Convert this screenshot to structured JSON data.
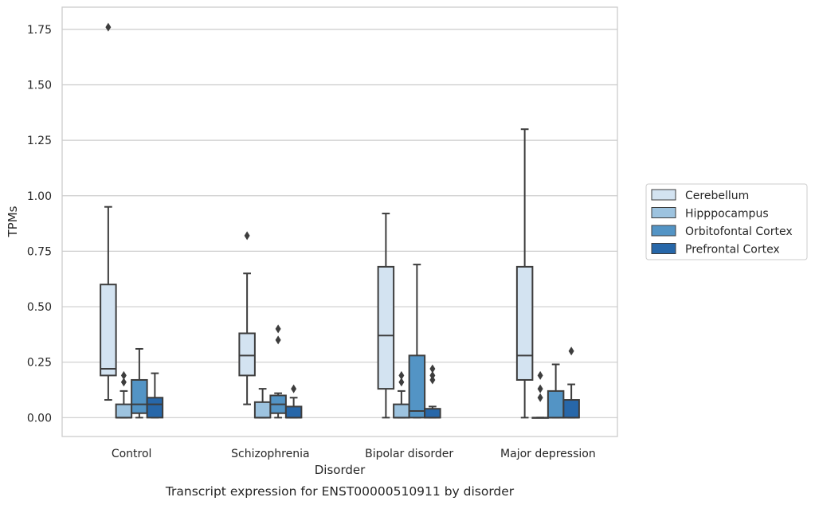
{
  "chart_data": {
    "type": "box",
    "title": "",
    "caption": "Transcript expression for ENST00000510911 by disorder",
    "xlabel": "Disorder",
    "ylabel": "TPMs",
    "ylim": [
      -0.085,
      1.85
    ],
    "yticks": [
      "0.00",
      "0.25",
      "0.50",
      "0.75",
      "1.00",
      "1.25",
      "1.50",
      "1.75"
    ],
    "grid": "horizontal",
    "legend_position": "right",
    "categories": [
      "Control",
      "Schizophrenia",
      "Bipolar disorder",
      "Major depression"
    ],
    "series": [
      {
        "name": "Cerebellum",
        "color": "#d3e3f1",
        "boxes": [
          {
            "whislo": 0.08,
            "q1": 0.19,
            "med": 0.22,
            "q3": 0.6,
            "whishi": 0.95,
            "fliers": [
              1.76
            ]
          },
          {
            "whislo": 0.06,
            "q1": 0.19,
            "med": 0.28,
            "q3": 0.38,
            "whishi": 0.65,
            "fliers": [
              0.82
            ]
          },
          {
            "whislo": 0.0,
            "q1": 0.13,
            "med": 0.37,
            "q3": 0.68,
            "whishi": 0.92,
            "fliers": []
          },
          {
            "whislo": 0.0,
            "q1": 0.17,
            "med": 0.28,
            "q3": 0.68,
            "whishi": 1.3,
            "fliers": []
          }
        ]
      },
      {
        "name": "Hipppocampus",
        "color": "#9dc3df",
        "boxes": [
          {
            "whislo": 0.0,
            "q1": 0.0,
            "med": 0.0,
            "q3": 0.06,
            "whishi": 0.12,
            "fliers": [
              0.16,
              0.19
            ]
          },
          {
            "whislo": 0.0,
            "q1": 0.0,
            "med": 0.0,
            "q3": 0.07,
            "whishi": 0.13,
            "fliers": []
          },
          {
            "whislo": 0.0,
            "q1": 0.0,
            "med": 0.0,
            "q3": 0.06,
            "whishi": 0.12,
            "fliers": [
              0.16,
              0.19
            ]
          },
          {
            "whislo": 0.0,
            "q1": 0.0,
            "med": 0.0,
            "q3": 0.0,
            "whishi": 0.0,
            "fliers": [
              0.09,
              0.13,
              0.19
            ]
          }
        ]
      },
      {
        "name": "Orbitofontal Cortex",
        "color": "#5394c5",
        "boxes": [
          {
            "whislo": 0.0,
            "q1": 0.02,
            "med": 0.06,
            "q3": 0.17,
            "whishi": 0.31,
            "fliers": []
          },
          {
            "whislo": 0.0,
            "q1": 0.02,
            "med": 0.06,
            "q3": 0.1,
            "whishi": 0.11,
            "fliers": [
              0.35,
              0.4
            ]
          },
          {
            "whislo": 0.0,
            "q1": 0.0,
            "med": 0.03,
            "q3": 0.28,
            "whishi": 0.69,
            "fliers": []
          },
          {
            "whislo": 0.0,
            "q1": 0.0,
            "med": 0.0,
            "q3": 0.12,
            "whishi": 0.24,
            "fliers": []
          }
        ]
      },
      {
        "name": "Prefrontal Cortex",
        "color": "#2767a9",
        "boxes": [
          {
            "whislo": 0.0,
            "q1": 0.0,
            "med": 0.06,
            "q3": 0.09,
            "whishi": 0.2,
            "fliers": []
          },
          {
            "whislo": 0.0,
            "q1": 0.0,
            "med": 0.0,
            "q3": 0.05,
            "whishi": 0.09,
            "fliers": [
              0.13
            ]
          },
          {
            "whislo": 0.0,
            "q1": 0.0,
            "med": 0.0,
            "q3": 0.04,
            "whishi": 0.05,
            "fliers": [
              0.17,
              0.19,
              0.22
            ]
          },
          {
            "whislo": 0.0,
            "q1": 0.0,
            "med": 0.0,
            "q3": 0.08,
            "whishi": 0.15,
            "fliers": [
              0.3
            ]
          }
        ]
      }
    ]
  },
  "colors": {
    "background": "#ffffff",
    "grid": "#cccccc",
    "frame": "#cccccc",
    "box_edge": "#3d3d3d",
    "text": "#262626"
  }
}
